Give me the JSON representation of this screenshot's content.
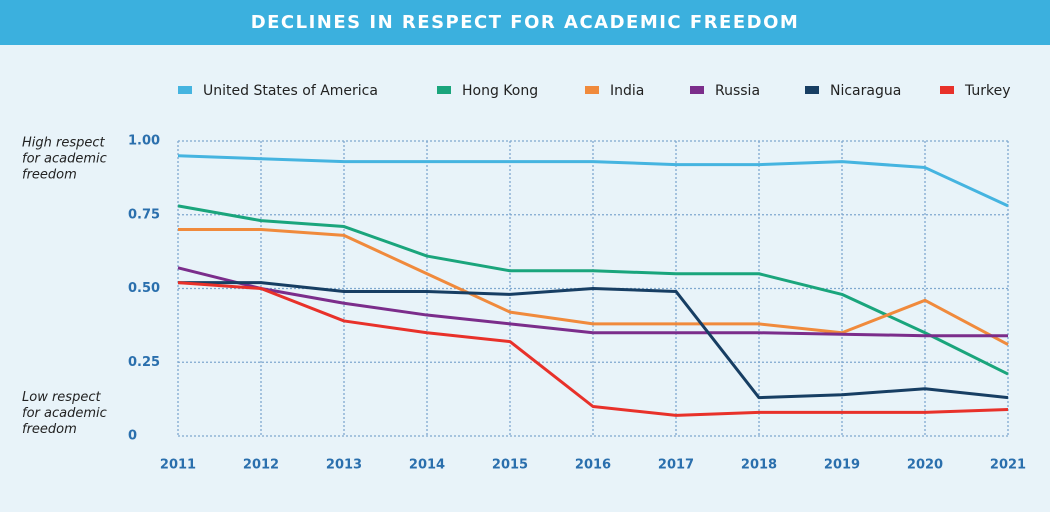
{
  "chart_data": {
    "type": "line",
    "title": "DECLINES IN RESPECT FOR ACADEMIC FREEDOM",
    "categories": [
      "2011",
      "2012",
      "2013",
      "2014",
      "2015",
      "2016",
      "2017",
      "2018",
      "2019",
      "2020",
      "2021"
    ],
    "series": [
      {
        "name": "United States of America",
        "color": "#45b4e0",
        "values": [
          0.95,
          0.94,
          0.93,
          0.93,
          0.93,
          0.93,
          0.92,
          0.92,
          0.93,
          0.91,
          0.78
        ]
      },
      {
        "name": "Hong Kong",
        "color": "#1aa57c",
        "values": [
          0.78,
          0.73,
          0.71,
          0.61,
          0.56,
          0.56,
          0.55,
          0.55,
          0.48,
          0.35,
          0.21
        ]
      },
      {
        "name": "India",
        "color": "#f08a3c",
        "values": [
          0.7,
          0.7,
          0.68,
          0.55,
          0.42,
          0.38,
          0.38,
          0.38,
          0.35,
          0.46,
          0.31
        ]
      },
      {
        "name": "Russia",
        "color": "#7b2d8b",
        "values": [
          0.57,
          0.5,
          0.45,
          0.41,
          0.38,
          0.35,
          0.35,
          0.35,
          0.345,
          0.34,
          0.34
        ]
      },
      {
        "name": "Nicaragua",
        "color": "#173e63",
        "values": [
          0.52,
          0.52,
          0.49,
          0.49,
          0.48,
          0.5,
          0.49,
          0.13,
          0.14,
          0.16,
          0.13
        ]
      },
      {
        "name": "Turkey",
        "color": "#e8312a",
        "values": [
          0.52,
          0.5,
          0.39,
          0.35,
          0.32,
          0.1,
          0.07,
          0.08,
          0.08,
          0.08,
          0.09
        ]
      }
    ],
    "ylim": [
      0,
      1
    ],
    "yticks": [
      0,
      0.25,
      {
        "value": 0.5,
        "label": "0.50"
      },
      0.75,
      {
        "value": 1,
        "label": "1.00"
      }
    ],
    "grid": true,
    "legend": "top",
    "annotations": [
      [
        "High respect",
        "for academic",
        "freedom"
      ],
      [
        "Low respect",
        "for academic",
        "freedom"
      ]
    ]
  }
}
